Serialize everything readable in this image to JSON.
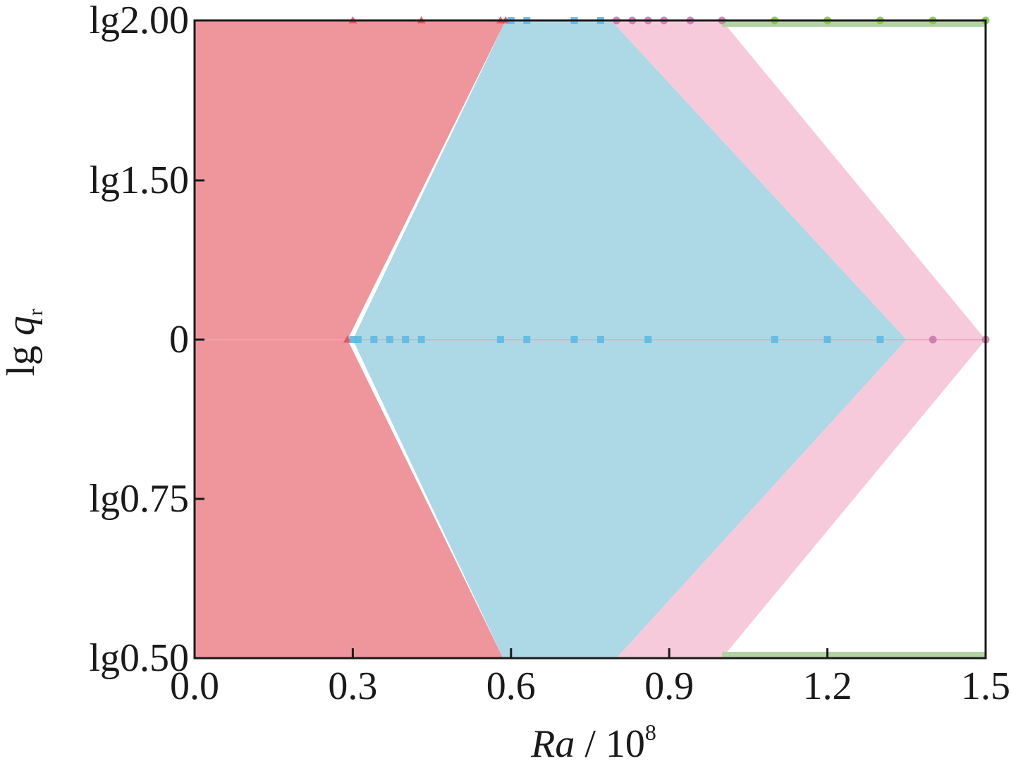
{
  "chart_data": {
    "type": "area",
    "xlabel": {
      "main": "Ra",
      "sep": " / 10",
      "sup": "8"
    },
    "ylabel": {
      "main": "lg ",
      "var": "q",
      "sub": "r"
    },
    "xlim": [
      0.0,
      1.5
    ],
    "x_ticks": [
      {
        "value": 0.0,
        "label": "0.0"
      },
      {
        "value": 0.3,
        "label": "0.3"
      },
      {
        "value": 0.6,
        "label": "0.6"
      },
      {
        "value": 0.9,
        "label": "0.9"
      },
      {
        "value": 1.2,
        "label": "1.2"
      },
      {
        "value": 1.5,
        "label": "1.5"
      }
    ],
    "y_scale": "log10, categorical ticks",
    "y_ticks": [
      {
        "q": 2.0,
        "label": "lg2.00"
      },
      {
        "q": 1.5,
        "label": "lg1.50"
      },
      {
        "q": 1.0,
        "label": "0"
      },
      {
        "q": 0.75,
        "label": "lg0.75"
      },
      {
        "q": 0.5,
        "label": "lg0.50"
      }
    ],
    "grid": false,
    "legend": "none",
    "regions": [
      {
        "color": "#ee969c",
        "boundary": [
          {
            "Ra": 0.0,
            "q": 2.0
          },
          {
            "Ra": 0.59,
            "q": 2.0
          },
          {
            "Ra": 0.29,
            "q": 1.0
          },
          {
            "Ra": 0.585,
            "q": 0.5
          },
          {
            "Ra": 0.0,
            "q": 0.5
          }
        ]
      },
      {
        "color": "#add8e6",
        "boundary": [
          {
            "Ra": 0.59,
            "q": 2.0
          },
          {
            "Ra": 0.79,
            "q": 2.0
          },
          {
            "Ra": 1.35,
            "q": 1.0
          },
          {
            "Ra": 0.8,
            "q": 0.5
          },
          {
            "Ra": 0.585,
            "q": 0.5
          },
          {
            "Ra": 0.3,
            "q": 1.0
          }
        ]
      },
      {
        "color": "#f7cadb",
        "boundary": [
          {
            "Ra": 0.79,
            "q": 2.0
          },
          {
            "Ra": 1.0,
            "q": 2.0
          },
          {
            "Ra": 1.5,
            "q": 1.0
          },
          {
            "Ra": 1.0,
            "q": 0.5
          },
          {
            "Ra": 0.8,
            "q": 0.5
          },
          {
            "Ra": 1.35,
            "q": 1.0
          }
        ]
      }
    ],
    "bands": [
      {
        "color": "#b3d3a4",
        "q": 2.0,
        "x_start": 1.0,
        "x_end": 1.5,
        "side": "below"
      },
      {
        "color": "#b3d3a4",
        "q": 0.5,
        "x_start": 1.0,
        "x_end": 1.5,
        "side": "above"
      }
    ],
    "series": [
      {
        "marker": "triangle",
        "color": "#e8484f",
        "points": [
          {
            "Ra": 0.3,
            "q": 2.0
          },
          {
            "Ra": 0.43,
            "q": 2.0
          },
          {
            "Ra": 0.58,
            "q": 2.0
          },
          {
            "Ra": 0.59,
            "q": 2.0
          },
          {
            "Ra": 0.29,
            "q": 1.0
          }
        ]
      },
      {
        "marker": "square",
        "color": "#62b7e3",
        "points": [
          {
            "Ra": 0.6,
            "q": 2.0
          },
          {
            "Ra": 0.63,
            "q": 2.0
          },
          {
            "Ra": 0.72,
            "q": 2.0
          },
          {
            "Ra": 0.77,
            "q": 2.0
          },
          {
            "Ra": 0.3,
            "q": 1.0
          },
          {
            "Ra": 0.31,
            "q": 1.0
          },
          {
            "Ra": 0.34,
            "q": 1.0
          },
          {
            "Ra": 0.37,
            "q": 1.0
          },
          {
            "Ra": 0.4,
            "q": 1.0
          },
          {
            "Ra": 0.43,
            "q": 1.0
          },
          {
            "Ra": 0.58,
            "q": 1.0
          },
          {
            "Ra": 0.63,
            "q": 1.0
          },
          {
            "Ra": 0.72,
            "q": 1.0
          },
          {
            "Ra": 0.77,
            "q": 1.0
          },
          {
            "Ra": 0.86,
            "q": 1.0
          },
          {
            "Ra": 1.1,
            "q": 1.0
          },
          {
            "Ra": 1.2,
            "q": 1.0
          },
          {
            "Ra": 1.3,
            "q": 1.0
          }
        ]
      },
      {
        "marker": "circle",
        "color": "#c974ad",
        "points": [
          {
            "Ra": 0.8,
            "q": 2.0
          },
          {
            "Ra": 0.83,
            "q": 2.0
          },
          {
            "Ra": 0.86,
            "q": 2.0
          },
          {
            "Ra": 0.89,
            "q": 2.0
          },
          {
            "Ra": 0.94,
            "q": 2.0
          },
          {
            "Ra": 1.0,
            "q": 2.0
          },
          {
            "Ra": 1.4,
            "q": 1.0
          },
          {
            "Ra": 1.5,
            "q": 1.0
          }
        ]
      },
      {
        "marker": "circle",
        "color": "#7cc242",
        "points": [
          {
            "Ra": 1.1,
            "q": 2.0
          },
          {
            "Ra": 1.2,
            "q": 2.0
          },
          {
            "Ra": 1.3,
            "q": 2.0
          },
          {
            "Ra": 1.4,
            "q": 2.0
          },
          {
            "Ra": 1.5,
            "q": 2.0
          }
        ]
      }
    ]
  }
}
